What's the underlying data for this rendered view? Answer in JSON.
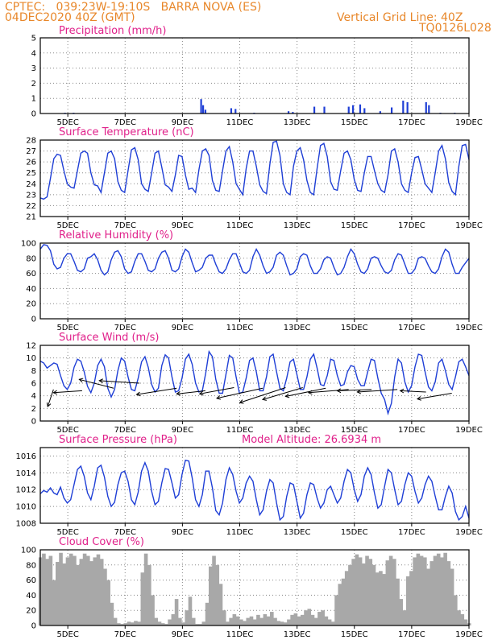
{
  "header": {
    "station": "CPTEC:   039:23W-19:10S   BARRA NOVA (ES)",
    "run": "04DEC2020 40Z (GMT)",
    "grid_note": "Vertical Grid Line: 40Z",
    "code": "TQ0126L028"
  },
  "colors": {
    "line": "#1f3fd6",
    "bar": "#1f3fd6",
    "cloud": "#a8a8a8",
    "title": "#e0208a",
    "header": "#e8872a",
    "arrow": "#000000"
  },
  "x_tick_labels": [
    "5DEC",
    "7DEC",
    "9DEC",
    "11DEC",
    "13DEC",
    "15DEC",
    "17DEC",
    "19DEC"
  ],
  "chart_data": [
    {
      "id": "precip",
      "type": "bar",
      "title": "Precipitation (mm/h)",
      "ylim": [
        0,
        5
      ],
      "yticks": [
        0,
        1,
        2,
        3,
        4,
        5
      ],
      "xlim_days": [
        4.04,
        19
      ],
      "bars": [
        [
          4.9,
          0.05
        ],
        [
          5.2,
          0.05
        ],
        [
          9.65,
          0.95
        ],
        [
          9.72,
          0.55
        ],
        [
          9.8,
          0.25
        ],
        [
          10.7,
          0.35
        ],
        [
          10.85,
          0.3
        ],
        [
          11.5,
          0.05
        ],
        [
          12.7,
          0.15
        ],
        [
          12.85,
          0.1
        ],
        [
          13.6,
          0.45
        ],
        [
          13.95,
          0.45
        ],
        [
          14.8,
          0.45
        ],
        [
          14.95,
          0.55
        ],
        [
          15.2,
          0.6
        ],
        [
          15.35,
          0.35
        ],
        [
          15.9,
          0.15
        ],
        [
          16.3,
          0.4
        ],
        [
          16.7,
          0.85
        ],
        [
          16.85,
          0.75
        ],
        [
          17.5,
          0.75
        ],
        [
          17.6,
          0.55
        ],
        [
          18.0,
          0.05
        ],
        [
          18.5,
          0.05
        ]
      ]
    },
    {
      "id": "temp",
      "type": "line",
      "title": "Surface Temperature (nC)",
      "ylim": [
        21,
        28
      ],
      "yticks": [
        21,
        22,
        23,
        24,
        25,
        26,
        27,
        28
      ],
      "xlim_days": [
        4.04,
        19
      ],
      "y_points": [
        22.7,
        22.6,
        22.8,
        24.5,
        26.3,
        26.7,
        26.6,
        25.2,
        24.0,
        23.7,
        23.6,
        25.2,
        26.8,
        27.0,
        26.8,
        25.0,
        23.9,
        23.8,
        23.2,
        25.0,
        26.8,
        27.0,
        26.3,
        24.2,
        23.4,
        23.2,
        25.2,
        27.1,
        27.3,
        26.2,
        24.0,
        23.5,
        23.3,
        25.0,
        26.8,
        27.0,
        25.5,
        23.9,
        23.7,
        23.3,
        24.8,
        26.6,
        26.5,
        24.8,
        23.5,
        23.6,
        23.2,
        25.3,
        27.0,
        27.2,
        26.6,
        24.3,
        23.4,
        23.3,
        25.2,
        27.0,
        27.4,
        26.0,
        24.0,
        23.5,
        23.0,
        25.4,
        27.0,
        27.0,
        25.6,
        23.9,
        23.3,
        23.1,
        25.8,
        27.8,
        27.9,
        26.6,
        24.0,
        23.2,
        23.0,
        25.6,
        27.0,
        27.3,
        26.2,
        24.3,
        23.2,
        23.0,
        25.4,
        27.5,
        27.7,
        26.5,
        24.2,
        23.5,
        23.4,
        25.2,
        26.8,
        27.0,
        26.2,
        24.4,
        23.4,
        23.3,
        25.0,
        26.5,
        26.5,
        25.2,
        24.0,
        23.4,
        23.2,
        24.8,
        27.0,
        27.2,
        26.0,
        24.0,
        23.4,
        23.2,
        25.0,
        26.4,
        26.5,
        25.3,
        24.0,
        23.6,
        23.2,
        25.0,
        27.0,
        27.5,
        26.3,
        24.1,
        23.3,
        23.0,
        25.6,
        27.5,
        27.6,
        26.2
      ]
    },
    {
      "id": "rh",
      "type": "line",
      "title": "Relative Humidity (%)",
      "ylim": [
        0,
        100
      ],
      "yticks": [
        0,
        20,
        40,
        60,
        80,
        100
      ],
      "xlim_days": [
        4.04,
        19
      ],
      "y_points": [
        92,
        98,
        97,
        90,
        72,
        66,
        68,
        80,
        86,
        86,
        76,
        64,
        62,
        66,
        80,
        82,
        86,
        78,
        64,
        58,
        62,
        78,
        88,
        90,
        82,
        66,
        60,
        62,
        76,
        86,
        86,
        76,
        64,
        62,
        66,
        80,
        88,
        90,
        80,
        64,
        62,
        66,
        82,
        92,
        88,
        74,
        62,
        64,
        68,
        80,
        84,
        84,
        72,
        62,
        60,
        66,
        78,
        86,
        86,
        74,
        62,
        60,
        64,
        82,
        92,
        84,
        70,
        60,
        62,
        68,
        84,
        88,
        84,
        70,
        58,
        60,
        66,
        82,
        86,
        84,
        70,
        60,
        60,
        66,
        78,
        82,
        80,
        68,
        58,
        60,
        68,
        82,
        92,
        86,
        72,
        62,
        60,
        66,
        80,
        82,
        80,
        70,
        62,
        60,
        64,
        78,
        86,
        84,
        72,
        60,
        60,
        66,
        80,
        82,
        80,
        70,
        62,
        60,
        66,
        82,
        92,
        88,
        72,
        60,
        60,
        68,
        74,
        80
      ]
    },
    {
      "id": "wind",
      "type": "line",
      "title": "Surface Wind (m/s)",
      "ylim": [
        0,
        12
      ],
      "yticks": [
        0,
        2,
        4,
        6,
        8,
        10,
        12
      ],
      "xlim_days": [
        4.04,
        19
      ],
      "y_points": [
        9.5,
        9.2,
        8.4,
        8.8,
        9.2,
        9.0,
        7.2,
        5.6,
        5.0,
        6.0,
        8.5,
        9.8,
        9.5,
        7.8,
        5.5,
        4.5,
        6.0,
        8.8,
        9.8,
        8.6,
        5.2,
        3.8,
        5.0,
        8.0,
        10.0,
        9.5,
        7.0,
        5.0,
        4.8,
        6.8,
        9.4,
        10.2,
        8.5,
        5.8,
        4.6,
        5.2,
        8.8,
        10.5,
        10.0,
        7.0,
        4.6,
        4.8,
        6.8,
        9.8,
        10.6,
        9.0,
        6.0,
        4.6,
        4.8,
        7.6,
        11.0,
        10.2,
        6.6,
        4.4,
        4.4,
        7.4,
        10.4,
        10.0,
        7.0,
        4.4,
        4.6,
        6.8,
        9.6,
        10.0,
        7.8,
        4.8,
        4.8,
        7.0,
        10.2,
        10.6,
        7.8,
        5.2,
        4.8,
        6.8,
        9.4,
        9.8,
        7.4,
        5.0,
        5.0,
        7.0,
        9.8,
        10.6,
        8.4,
        5.8,
        5.6,
        7.2,
        9.8,
        9.6,
        7.2,
        5.6,
        5.8,
        7.8,
        8.8,
        8.6,
        6.6,
        5.6,
        5.6,
        7.8,
        9.8,
        9.6,
        6.8,
        4.4,
        3.4,
        1.2,
        2.8,
        7.0,
        9.8,
        9.2,
        6.2,
        4.6,
        5.6,
        8.6,
        10.6,
        10.4,
        7.8,
        5.4,
        4.8,
        6.2,
        9.2,
        9.8,
        8.0,
        5.8,
        5.0,
        7.0,
        9.4,
        9.8,
        8.6,
        7.2
      ],
      "wind_barbs": [
        [
          4.5,
          5.0,
          4.3,
          2.3
        ],
        [
          5.5,
          4.8,
          4.5,
          4.5
        ],
        [
          6.6,
          5.2,
          5.4,
          6.6
        ],
        [
          7.5,
          6.0,
          6.1,
          6.4
        ],
        [
          8.8,
          5.2,
          7.4,
          4.2
        ],
        [
          9.8,
          4.8,
          8.8,
          4.3
        ],
        [
          10.8,
          5.3,
          9.6,
          4.3
        ],
        [
          11.8,
          5.2,
          10.2,
          3.6
        ],
        [
          12.6,
          5.3,
          11.0,
          2.9
        ],
        [
          13.2,
          5.3,
          11.8,
          3.4
        ],
        [
          14.0,
          5.2,
          12.6,
          3.9
        ],
        [
          14.8,
          5.0,
          13.4,
          4.5
        ],
        [
          15.6,
          5.0,
          14.4,
          4.8
        ],
        [
          16.5,
          5.0,
          15.1,
          4.6
        ],
        [
          17.5,
          4.6,
          16.6,
          4.8
        ],
        [
          18.4,
          4.4,
          17.2,
          3.5
        ]
      ]
    },
    {
      "id": "pres",
      "type": "line",
      "title": "Surface Pressure (hPa)",
      "subtitle": "Model Altitude: 26.6934 m",
      "ylim": [
        1008,
        1017
      ],
      "yticks": [
        1008,
        1010,
        1012,
        1014,
        1016
      ],
      "xlim_days": [
        4.04,
        19
      ],
      "y_points": [
        1011.5,
        1011.9,
        1011.7,
        1012.2,
        1011.6,
        1011.4,
        1012.3,
        1011.0,
        1010.4,
        1010.8,
        1012.6,
        1014.4,
        1014.8,
        1013.6,
        1011.6,
        1010.8,
        1012.4,
        1014.6,
        1014.9,
        1013.5,
        1011.2,
        1010.0,
        1010.5,
        1012.6,
        1014.0,
        1014.2,
        1013.0,
        1010.8,
        1010.2,
        1011.7,
        1014.2,
        1015.2,
        1014.2,
        1011.8,
        1010.2,
        1010.6,
        1012.8,
        1014.5,
        1014.4,
        1012.8,
        1011.0,
        1011.4,
        1013.8,
        1015.5,
        1015.4,
        1013.4,
        1010.8,
        1010.0,
        1011.4,
        1014.2,
        1014.2,
        1012.2,
        1009.5,
        1009.0,
        1010.4,
        1013.2,
        1014.6,
        1013.8,
        1011.8,
        1010.4,
        1011.0,
        1012.8,
        1013.6,
        1013.0,
        1010.8,
        1009.0,
        1009.6,
        1011.8,
        1013.2,
        1012.8,
        1010.4,
        1008.4,
        1008.8,
        1011.2,
        1012.8,
        1012.6,
        1010.6,
        1008.6,
        1009.2,
        1011.4,
        1012.8,
        1012.6,
        1011.0,
        1009.8,
        1010.4,
        1012.0,
        1012.4,
        1011.4,
        1010.4,
        1011.0,
        1013.0,
        1014.4,
        1014.0,
        1012.0,
        1010.6,
        1011.4,
        1013.6,
        1014.6,
        1013.8,
        1011.6,
        1009.8,
        1010.2,
        1012.4,
        1014.4,
        1014.0,
        1012.0,
        1010.2,
        1010.6,
        1012.6,
        1014.0,
        1013.6,
        1011.8,
        1010.4,
        1011.0,
        1012.6,
        1013.6,
        1013.0,
        1011.2,
        1009.6,
        1009.6,
        1011.2,
        1012.4,
        1011.6,
        1009.4,
        1008.4,
        1008.8,
        1010.0,
        1008.6
      ]
    },
    {
      "id": "cloud",
      "type": "area",
      "title": "Cloud Cover (%)",
      "ylim": [
        0,
        100
      ],
      "yticks": [
        0,
        20,
        40,
        60,
        80,
        100
      ],
      "xlim_days": [
        4.04,
        19
      ],
      "y_points": [
        90,
        95,
        88,
        92,
        60,
        84,
        96,
        82,
        90,
        95,
        92,
        80,
        88,
        95,
        92,
        85,
        90,
        94,
        88,
        75,
        60,
        30,
        10,
        3,
        2,
        3,
        5,
        4,
        6,
        5,
        70,
        95,
        80,
        40,
        10,
        5,
        3,
        2,
        8,
        15,
        35,
        10,
        4,
        20,
        38,
        10,
        2,
        2,
        5,
        30,
        78,
        92,
        80,
        55,
        20,
        5,
        10,
        15,
        12,
        8,
        6,
        10,
        12,
        8,
        14,
        10,
        15,
        12,
        18,
        10,
        6,
        5,
        4,
        8,
        14,
        16,
        12,
        14,
        20,
        22,
        14,
        10,
        18,
        20,
        12,
        8,
        5,
        40,
        55,
        62,
        72,
        80,
        88,
        94,
        90,
        82,
        92,
        88,
        80,
        70,
        72,
        68,
        86,
        92,
        88,
        62,
        35,
        20,
        65,
        72,
        90,
        95,
        92,
        90,
        75,
        85,
        92,
        95,
        90,
        96,
        85,
        75,
        40,
        20,
        15,
        8,
        3
      ]
    }
  ]
}
